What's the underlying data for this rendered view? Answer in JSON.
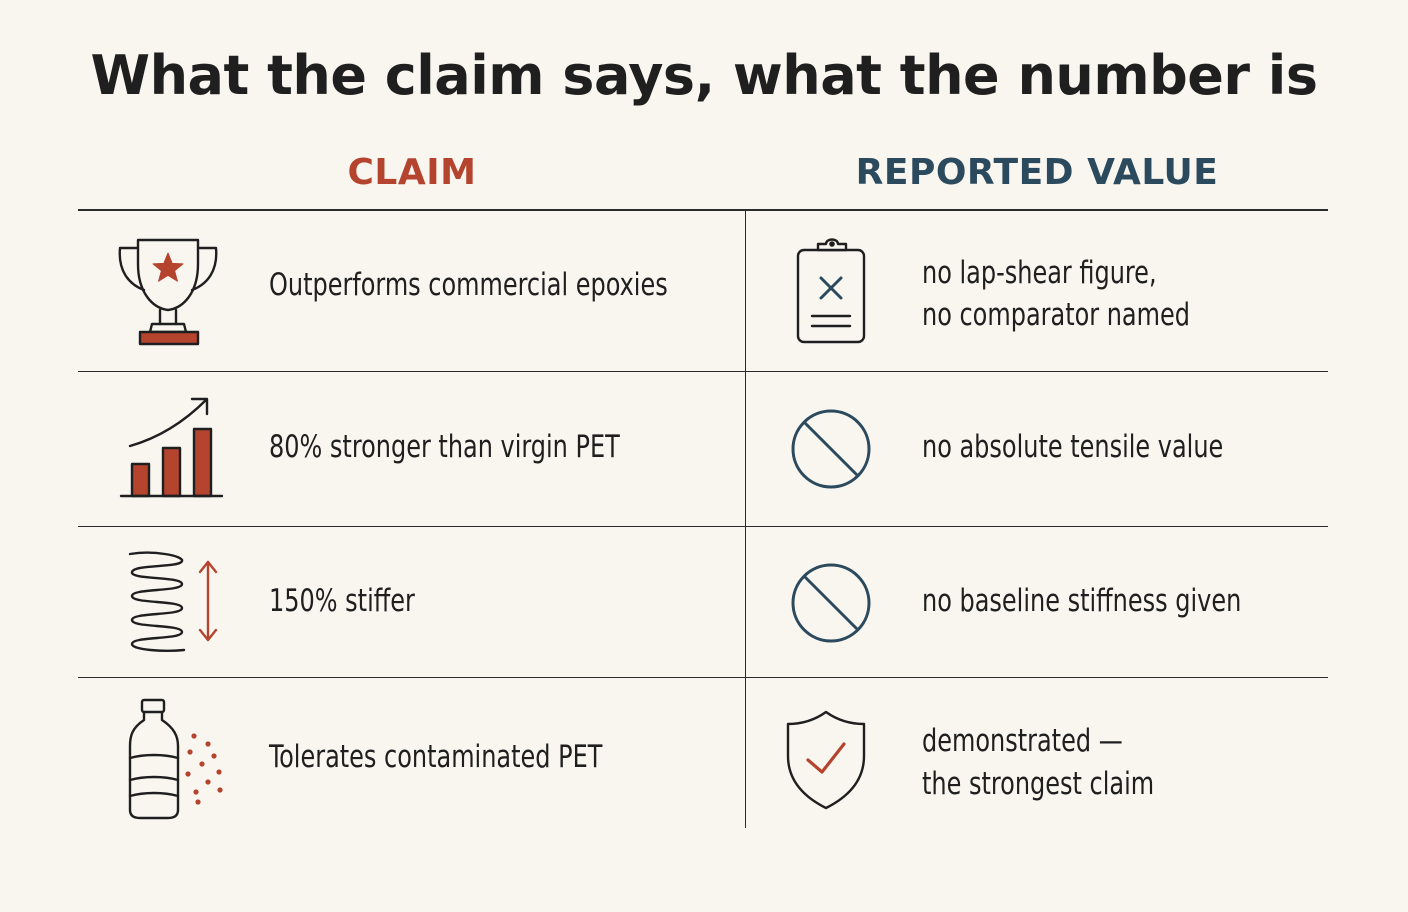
{
  "title": "What the claim says, what the number is",
  "colors": {
    "claim": "#b5442f",
    "value": "#2c4a5e",
    "ink": "#1f1f1f",
    "background": "#f9f6f0"
  },
  "columns": {
    "claim_header": "CLAIM",
    "value_header": "REPORTED VALUE"
  },
  "rows": [
    {
      "claim_icon": "trophy-icon",
      "claim": "Outperforms commercial epoxies",
      "value_icon": "clipboard-x-icon",
      "value_lines": [
        "no lap-shear figure,",
        "no comparator named"
      ]
    },
    {
      "claim_icon": "rising-bar-chart-icon",
      "claim": "80% stronger than virgin PET",
      "value_icon": "prohibited-icon",
      "value_lines": [
        "no absolute tensile value"
      ]
    },
    {
      "claim_icon": "spring-icon",
      "claim": "150% stiffer",
      "value_icon": "prohibited-icon",
      "value_lines": [
        "no baseline stiffness given"
      ]
    },
    {
      "claim_icon": "bottle-contaminants-icon",
      "claim": "Tolerates contaminated PET",
      "value_icon": "shield-check-icon",
      "value_lines": [
        "demonstrated —",
        "the strongest claim"
      ]
    }
  ]
}
